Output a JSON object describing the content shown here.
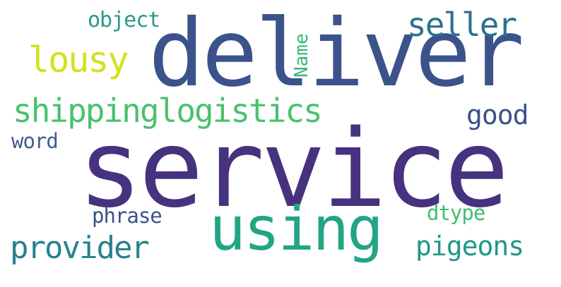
{
  "word_cloud": {
    "words": [
      {
        "text": "deliver",
        "color": "#3b528b"
      },
      {
        "text": "service",
        "color": "#46327e"
      },
      {
        "text": "using",
        "color": "#21a585"
      },
      {
        "text": "shippinglogistics",
        "color": "#4ac16d"
      },
      {
        "text": "seller",
        "color": "#2c728e"
      },
      {
        "text": "lousy",
        "color": "#d2e21b"
      },
      {
        "text": "provider",
        "color": "#26828e"
      },
      {
        "text": "pigeons",
        "color": "#1f988b"
      },
      {
        "text": "good",
        "color": "#3b528b"
      },
      {
        "text": "object",
        "color": "#2a9a8a"
      },
      {
        "text": "word",
        "color": "#3e5f8a"
      },
      {
        "text": "phrase",
        "color": "#3b528b"
      },
      {
        "text": "dtype",
        "color": "#42be71"
      },
      {
        "text": "Name",
        "color": "#35b779"
      }
    ]
  }
}
